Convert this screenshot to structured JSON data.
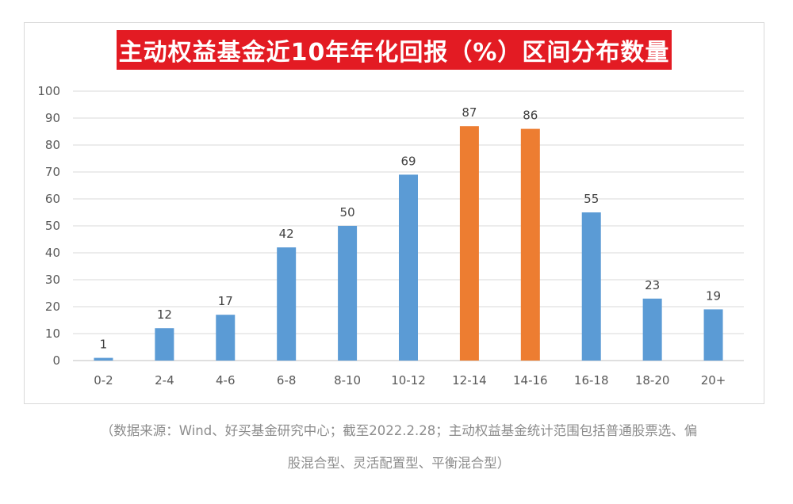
{
  "chart_data": {
    "type": "bar",
    "title": "主动权益基金近10年年化回报（%）区间分布数量",
    "categories": [
      "0-2",
      "2-4",
      "4-6",
      "6-8",
      "8-10",
      "10-12",
      "12-14",
      "14-16",
      "16-18",
      "18-20",
      "20+"
    ],
    "values": [
      1,
      12,
      17,
      42,
      50,
      69,
      87,
      86,
      55,
      23,
      19
    ],
    "highlight_categories": [
      "12-14",
      "14-16"
    ],
    "ylim": [
      0,
      100
    ],
    "yticks": [
      0,
      10,
      20,
      30,
      40,
      50,
      60,
      70,
      80,
      90,
      100
    ],
    "xlabel": "",
    "ylabel": "",
    "grid": true,
    "colors": {
      "bar": "#5b9bd5",
      "highlight": "#ed7d31",
      "title_bg": "#e31b23"
    }
  },
  "footnote": {
    "line1": "（数据来源：Wind、好买基金研究中心；截至2022.2.28；主动权益基金统计范围包括普通股票选、偏",
    "line2": "股混合型、灵活配置型、平衡混合型）"
  }
}
